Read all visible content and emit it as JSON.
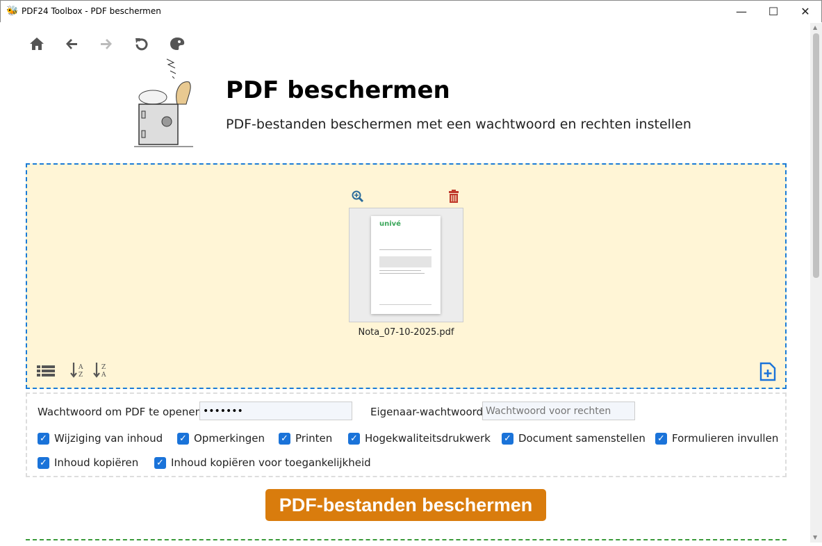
{
  "window": {
    "title": "PDF24 Toolbox - PDF beschermen",
    "minimize": "—",
    "maximize": "☐",
    "close": "✕"
  },
  "toolbar": {
    "home": "⌂",
    "back": "🡐",
    "forward": "🡒",
    "reload": "↻",
    "theme": "palette-icon"
  },
  "header": {
    "title": "PDF beschermen",
    "subtitle": "PDF-bestanden beschermen met een wachtwoord en rechten instellen"
  },
  "file": {
    "name": "Nota_07-10-2025.pdf",
    "logo": "univé"
  },
  "colors": {
    "accent": "#d97c0d",
    "drop_bg": "#fff5d6",
    "drop_border": "#1a7bd6",
    "checkbox": "#1a73d9",
    "delete": "#c0392b"
  },
  "options": {
    "open_password_label": "Wachtwoord om PDF te openen",
    "open_password_value": "•••••••",
    "owner_password_label": "Eigenaar-wachtwoord",
    "owner_password_placeholder": "Wachtwoord voor rechten",
    "checkboxes": [
      {
        "label": "Wijziging van inhoud",
        "checked": true
      },
      {
        "label": "Opmerkingen",
        "checked": true
      },
      {
        "label": "Printen",
        "checked": true
      },
      {
        "label": "Hogekwaliteitsdrukwerk",
        "checked": true
      },
      {
        "label": "Document samenstellen",
        "checked": true
      },
      {
        "label": "Formulieren invullen",
        "checked": true
      },
      {
        "label": "Inhoud kopiëren",
        "checked": true
      },
      {
        "label": "Inhoud kopiëren voor toegankelijkheid",
        "checked": true
      }
    ]
  },
  "action": {
    "label": "PDF-bestanden beschermen"
  }
}
